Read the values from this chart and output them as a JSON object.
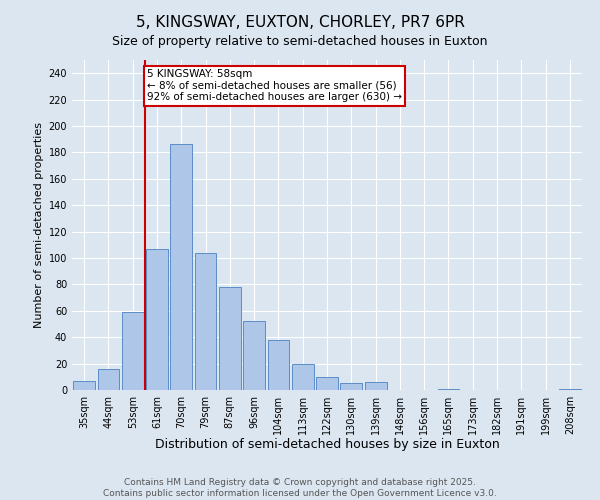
{
  "title": "5, KINGSWAY, EUXTON, CHORLEY, PR7 6PR",
  "subtitle": "Size of property relative to semi-detached houses in Euxton",
  "xlabel": "Distribution of semi-detached houses by size in Euxton",
  "ylabel": "Number of semi-detached properties",
  "categories": [
    "35sqm",
    "44sqm",
    "53sqm",
    "61sqm",
    "70sqm",
    "79sqm",
    "87sqm",
    "96sqm",
    "104sqm",
    "113sqm",
    "122sqm",
    "130sqm",
    "139sqm",
    "148sqm",
    "156sqm",
    "165sqm",
    "173sqm",
    "182sqm",
    "191sqm",
    "199sqm",
    "208sqm"
  ],
  "values": [
    7,
    16,
    59,
    107,
    186,
    104,
    78,
    52,
    38,
    20,
    10,
    5,
    6,
    0,
    0,
    1,
    0,
    0,
    0,
    0,
    1
  ],
  "bar_color": "#aec6e8",
  "bar_edge_color": "#5b8dc8",
  "vline_color": "#cc0000",
  "annotation_text": "5 KINGSWAY: 58sqm\n← 8% of semi-detached houses are smaller (56)\n92% of semi-detached houses are larger (630) →",
  "annotation_box_color": "#ffffff",
  "annotation_box_edge": "#cc0000",
  "ylim": [
    0,
    250
  ],
  "yticks": [
    0,
    20,
    40,
    60,
    80,
    100,
    120,
    140,
    160,
    180,
    200,
    220,
    240
  ],
  "bg_color": "#dce6f1",
  "plot_bg_color": "#dce6f1",
  "footer1": "Contains HM Land Registry data © Crown copyright and database right 2025.",
  "footer2": "Contains public sector information licensed under the Open Government Licence v3.0.",
  "title_fontsize": 11,
  "xlabel_fontsize": 9,
  "ylabel_fontsize": 8,
  "tick_fontsize": 7,
  "footer_fontsize": 6.5,
  "annot_fontsize": 7.5
}
